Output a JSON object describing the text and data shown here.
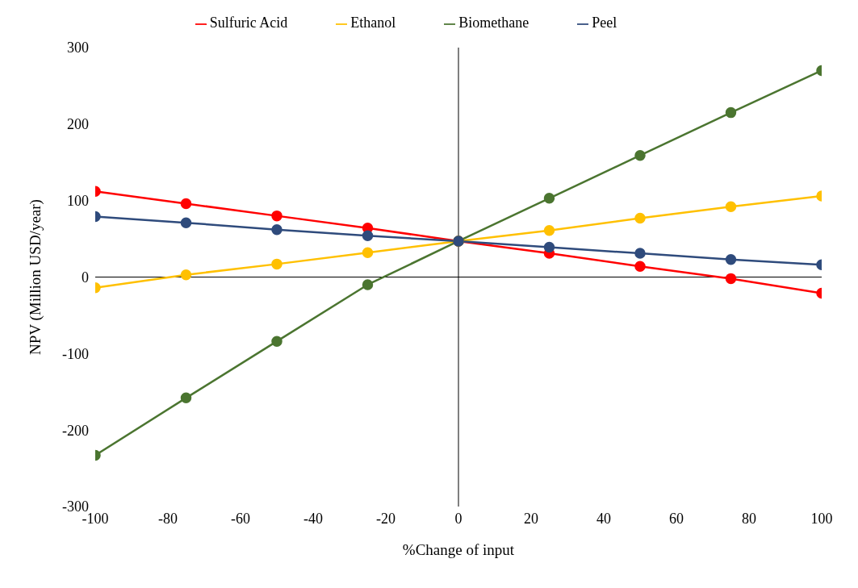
{
  "chart_data": {
    "type": "line",
    "xlabel": "%Change of input",
    "ylabel": "NPV (Million USD/year)",
    "x": [
      -100,
      -75,
      -50,
      -25,
      0,
      25,
      50,
      75,
      100
    ],
    "series": [
      {
        "name": "Sulfuric Acid",
        "color": "#ff0000",
        "values": [
          112,
          96,
          80,
          64,
          47,
          31,
          14,
          -2,
          -21
        ]
      },
      {
        "name": "Ethanol",
        "color": "#ffc000",
        "values": [
          -14,
          3,
          17,
          32,
          47,
          61,
          77,
          92,
          106
        ]
      },
      {
        "name": "Biomethane",
        "color": "#4b7530",
        "values": [
          -233,
          -158,
          -84,
          -10,
          47,
          103,
          159,
          215,
          270
        ]
      },
      {
        "name": "Peel",
        "color": "#2f4b7c",
        "values": [
          79,
          71,
          62,
          54,
          47,
          39,
          31,
          23,
          16
        ]
      }
    ],
    "xlim": [
      -100,
      100
    ],
    "xticks": [
      -100,
      -80,
      -60,
      -40,
      -20,
      0,
      20,
      40,
      60,
      80,
      100
    ],
    "ylim": [
      -300,
      300
    ],
    "yticks": [
      -300,
      -200,
      -100,
      0,
      100,
      200,
      300
    ],
    "legend": "top",
    "marker": "circle",
    "line_style": "solid"
  }
}
